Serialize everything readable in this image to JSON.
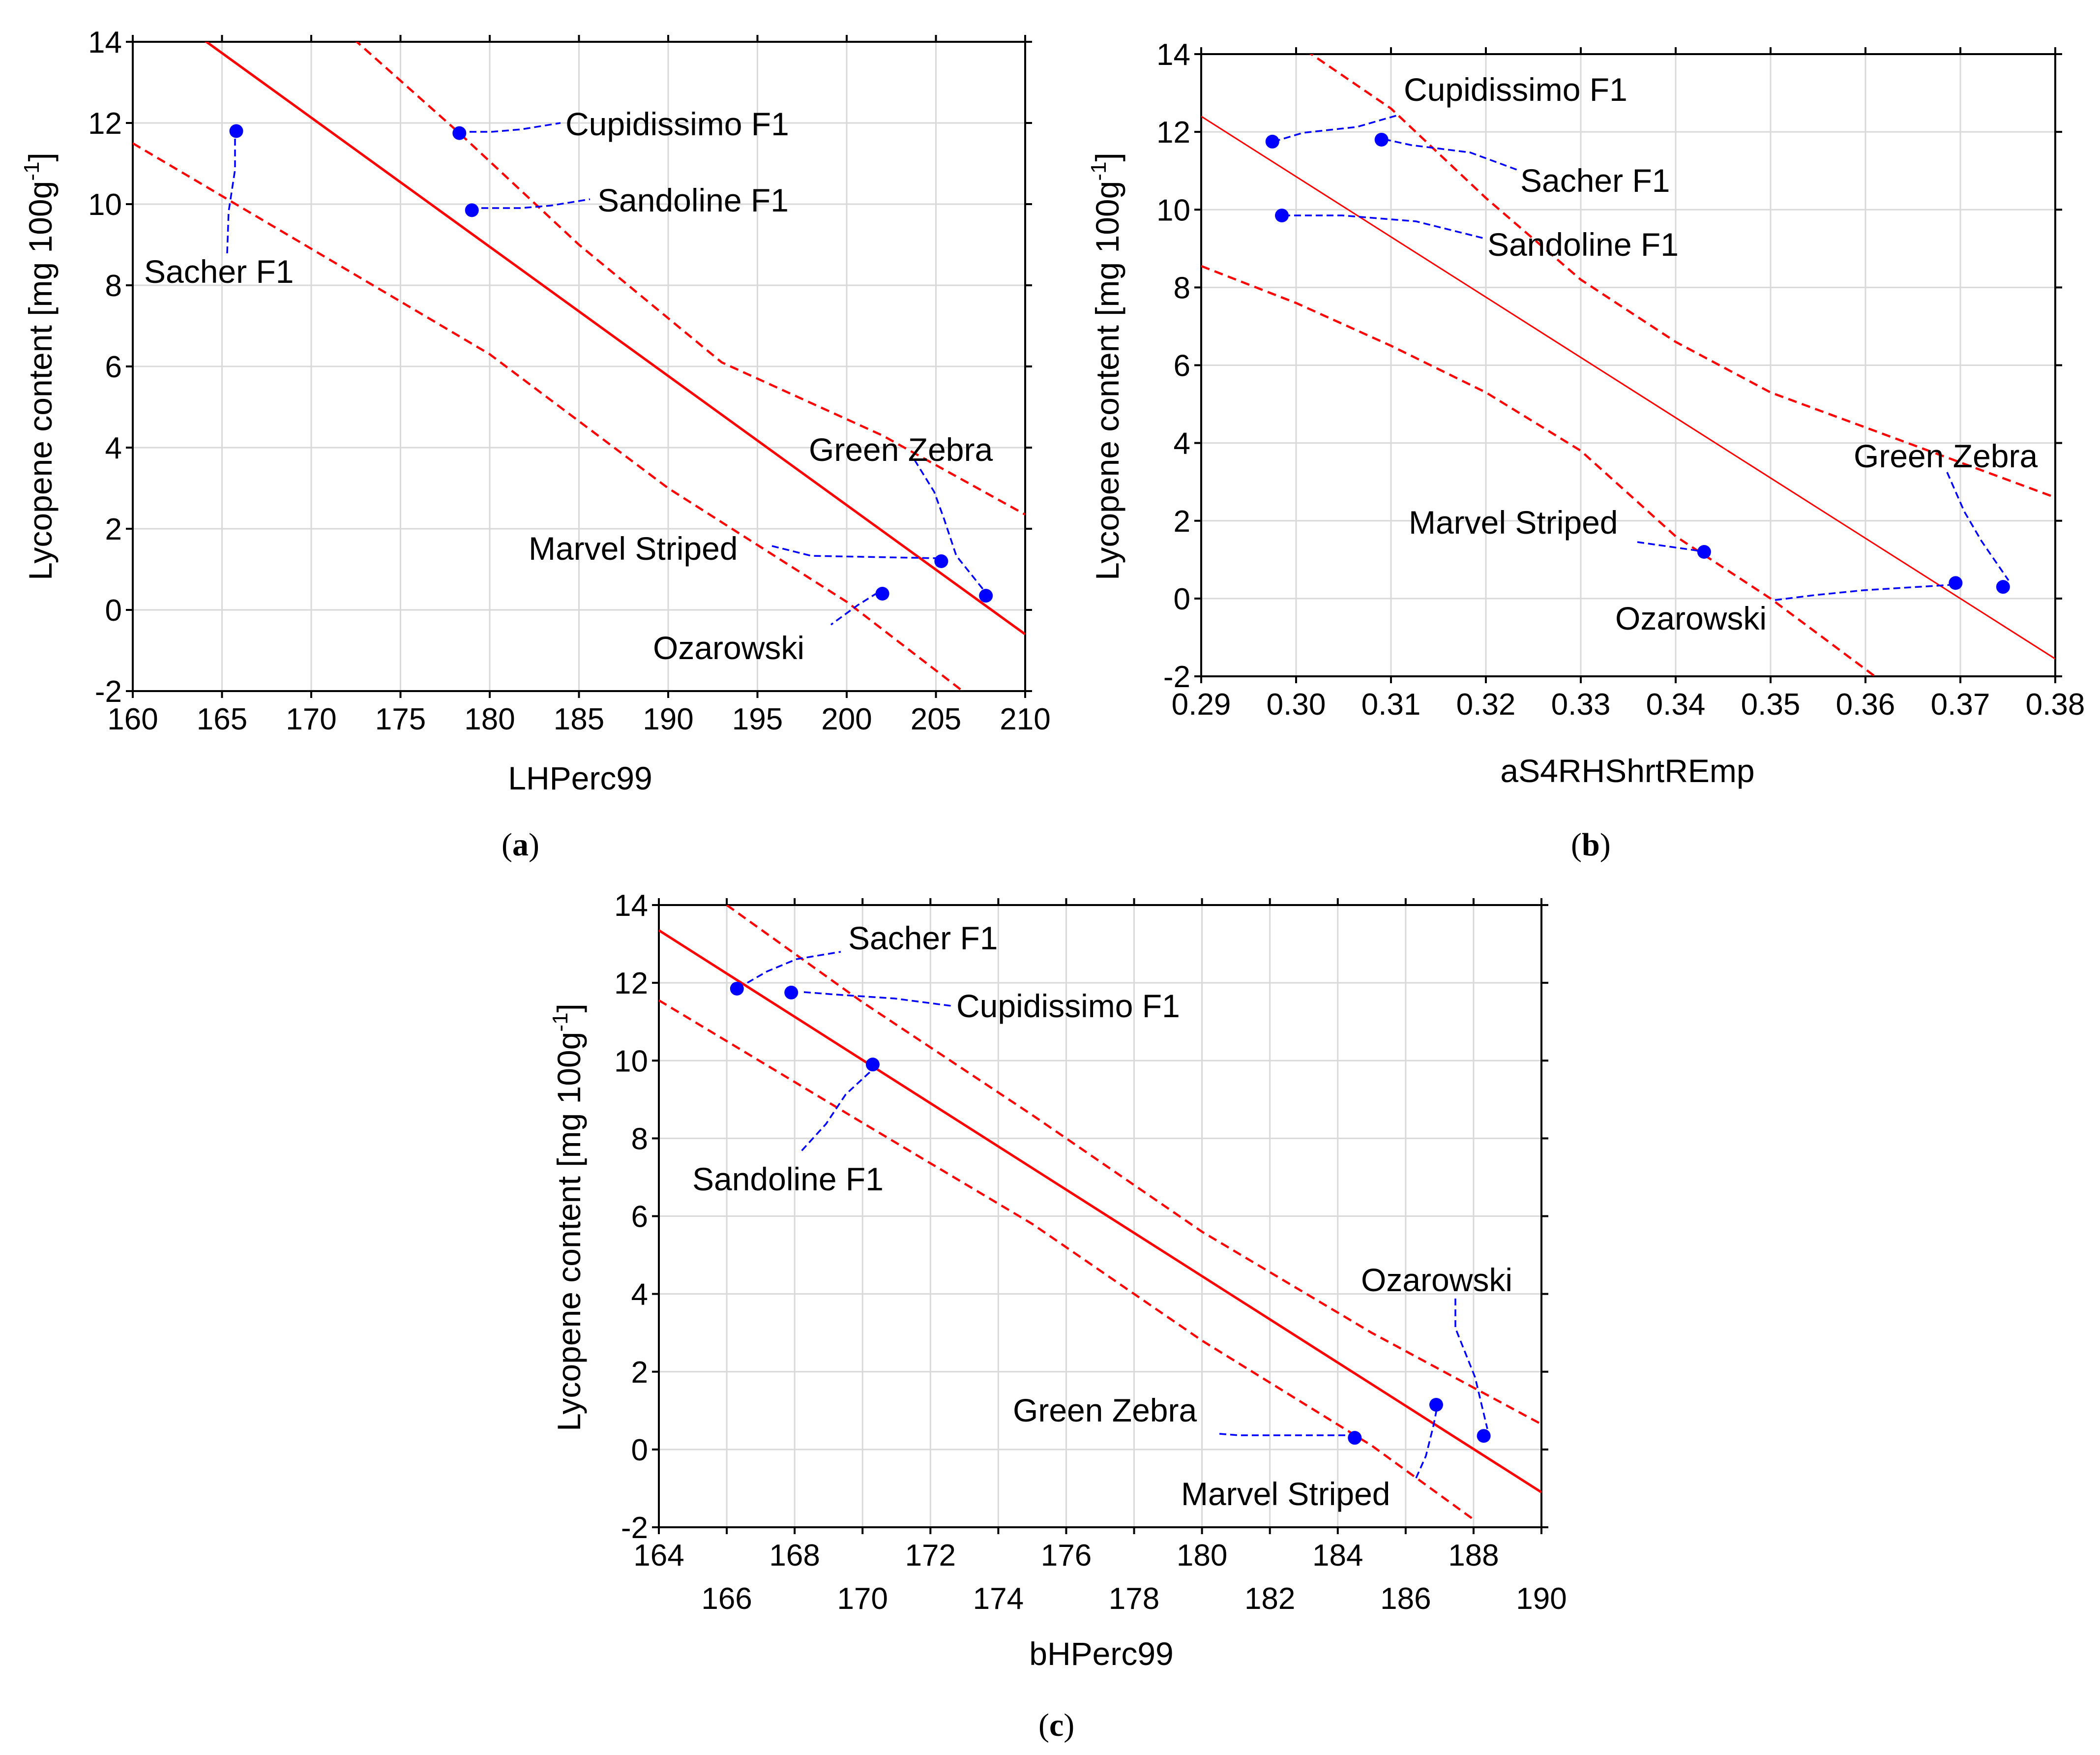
{
  "figure": {
    "labels": {
      "a": "a",
      "b": "b",
      "c": "c"
    }
  },
  "colors": {
    "regression": "#ff0000",
    "points": "#0000ff",
    "leader": "#0000ff",
    "grid": "#d9d9d9",
    "axis": "#000000"
  },
  "chart_data": [
    {
      "id": "a",
      "type": "scatter",
      "title": "",
      "xlabel": "LHPerc99",
      "ylabel": "Lycopene content [mg 100g",
      "ylabel_sup": "-1",
      "ylabel_end": "]",
      "xlim": [
        160,
        210
      ],
      "ylim": [
        -2,
        14
      ],
      "xticks": [
        "160",
        "165",
        "170",
        "175",
        "180",
        "185",
        "190",
        "195",
        "200",
        "205",
        "210"
      ],
      "yticks": [
        "-2",
        "0",
        "2",
        "4",
        "6",
        "8",
        "10",
        "12",
        "14"
      ],
      "grid": true,
      "points": [
        {
          "name": "Sacher F1",
          "x": 165.8,
          "y": 11.8
        },
        {
          "name": "Cupidissimo F1",
          "x": 178.3,
          "y": 11.75
        },
        {
          "name": "Sandoline F1",
          "x": 179.0,
          "y": 9.85
        },
        {
          "name": "Green Zebra",
          "x": 207.8,
          "y": 0.35
        },
        {
          "name": "Marvel Striped",
          "x": 205.3,
          "y": 1.2
        },
        {
          "name": "Ozarowski",
          "x": 202.0,
          "y": 0.4
        }
      ],
      "fit_line": [
        [
          163.5,
          14.2
        ],
        [
          210.0,
          -0.6
        ]
      ],
      "upper_band": [
        [
          170,
          15.0
        ],
        [
          178.3,
          11.75
        ],
        [
          185,
          9.0
        ],
        [
          193,
          6.1
        ],
        [
          202,
          4.3
        ],
        [
          210,
          2.35
        ]
      ],
      "lower_band": [
        [
          160,
          11.5
        ],
        [
          170,
          8.9
        ],
        [
          180,
          6.3
        ],
        [
          190,
          3.0
        ],
        [
          200,
          0.2
        ],
        [
          206.5,
          -2.0
        ]
      ]
    },
    {
      "id": "b",
      "type": "scatter",
      "title": "",
      "xlabel": "aS4RHShrtREmp",
      "ylabel": "Lycopene content [mg 100g",
      "ylabel_sup": "-1",
      "ylabel_end": "]",
      "xlim": [
        0.29,
        0.38
      ],
      "ylim": [
        -2,
        14
      ],
      "xticks": [
        "0.29",
        "0.30",
        "0.31",
        "0.32",
        "0.33",
        "0.34",
        "0.35",
        "0.36",
        "0.37",
        "0.38"
      ],
      "yticks": [
        "-2",
        "0",
        "2",
        "4",
        "6",
        "8",
        "10",
        "12",
        "14"
      ],
      "grid": true,
      "points": [
        {
          "name": "Cupidissimo F1",
          "x": 0.2975,
          "y": 11.75
        },
        {
          "name": "Sacher F1",
          "x": 0.309,
          "y": 11.8
        },
        {
          "name": "Sandoline F1",
          "x": 0.2985,
          "y": 9.85
        },
        {
          "name": "Marvel Striped",
          "x": 0.343,
          "y": 1.2
        },
        {
          "name": "Ozarowski",
          "x": 0.3695,
          "y": 0.4
        },
        {
          "name": "Green Zebra",
          "x": 0.3745,
          "y": 0.3
        }
      ],
      "fit_line": [
        [
          0.29,
          12.4
        ],
        [
          0.38,
          -1.55
        ]
      ],
      "upper_band": [
        [
          0.301,
          14.1
        ],
        [
          0.31,
          12.6
        ],
        [
          0.32,
          10.3
        ],
        [
          0.33,
          8.2
        ],
        [
          0.34,
          6.6
        ],
        [
          0.35,
          5.3
        ],
        [
          0.36,
          4.4
        ],
        [
          0.37,
          3.5
        ],
        [
          0.38,
          2.6
        ]
      ],
      "lower_band": [
        [
          0.29,
          8.55
        ],
        [
          0.3,
          7.6
        ],
        [
          0.31,
          6.5
        ],
        [
          0.32,
          5.3
        ],
        [
          0.33,
          3.8
        ],
        [
          0.34,
          1.6
        ],
        [
          0.35,
          0.0
        ],
        [
          0.361,
          -2.0
        ]
      ]
    },
    {
      "id": "c",
      "type": "scatter",
      "title": "",
      "xlabel": "bHPerc99",
      "ylabel": "Lycopene content [mg 100g",
      "ylabel_sup": "-1",
      "ylabel_end": "]",
      "xlim": [
        164,
        190
      ],
      "ylim": [
        -2,
        14
      ],
      "xticks_top_row": [
        "164",
        "168",
        "172",
        "176",
        "180",
        "184",
        "188"
      ],
      "xticks_bottom_row": [
        "166",
        "170",
        "174",
        "178",
        "182",
        "186",
        "190"
      ],
      "yticks": [
        "-2",
        "0",
        "2",
        "4",
        "6",
        "8",
        "10",
        "12",
        "14"
      ],
      "grid": true,
      "points": [
        {
          "name": "Sacher F1",
          "x": 166.3,
          "y": 11.85
        },
        {
          "name": "Cupidissimo F1",
          "x": 167.9,
          "y": 11.75
        },
        {
          "name": "Sandoline F1",
          "x": 170.3,
          "y": 9.9
        },
        {
          "name": "Green Zebra",
          "x": 184.5,
          "y": 0.3
        },
        {
          "name": "Marvel Striped",
          "x": 186.9,
          "y": 1.15
        },
        {
          "name": "Ozarowski",
          "x": 188.3,
          "y": 0.35
        }
      ],
      "fit_line": [
        [
          164,
          13.35
        ],
        [
          190,
          -1.1
        ]
      ],
      "upper_band": [
        [
          166,
          14.0
        ],
        [
          170,
          11.5
        ],
        [
          175,
          8.6
        ],
        [
          180,
          5.6
        ],
        [
          185,
          3.0
        ],
        [
          190,
          0.65
        ]
      ],
      "lower_band": [
        [
          164,
          11.55
        ],
        [
          170,
          8.4
        ],
        [
          175,
          5.8
        ],
        [
          180,
          2.8
        ],
        [
          185,
          0.1
        ],
        [
          188,
          -1.8
        ]
      ]
    }
  ],
  "annotations": {
    "a": [
      {
        "text": "Sacher F1"
      },
      {
        "text": "Cupidissimo F1"
      },
      {
        "text": "Sandoline F1"
      },
      {
        "text": "Green Zebra"
      },
      {
        "text": "Marvel Striped"
      },
      {
        "text": "Ozarowski"
      }
    ],
    "b": [
      {
        "text": "Cupidissimo F1"
      },
      {
        "text": "Sacher F1"
      },
      {
        "text": "Sandoline F1"
      },
      {
        "text": "Green Zebra"
      },
      {
        "text": "Marvel Striped"
      },
      {
        "text": "Ozarowski"
      }
    ],
    "c": [
      {
        "text": "Sacher F1"
      },
      {
        "text": "Cupidissimo F1"
      },
      {
        "text": "Sandoline F1"
      },
      {
        "text": "Ozarowski"
      },
      {
        "text": "Green Zebra"
      },
      {
        "text": "Marvel Striped"
      }
    ]
  }
}
